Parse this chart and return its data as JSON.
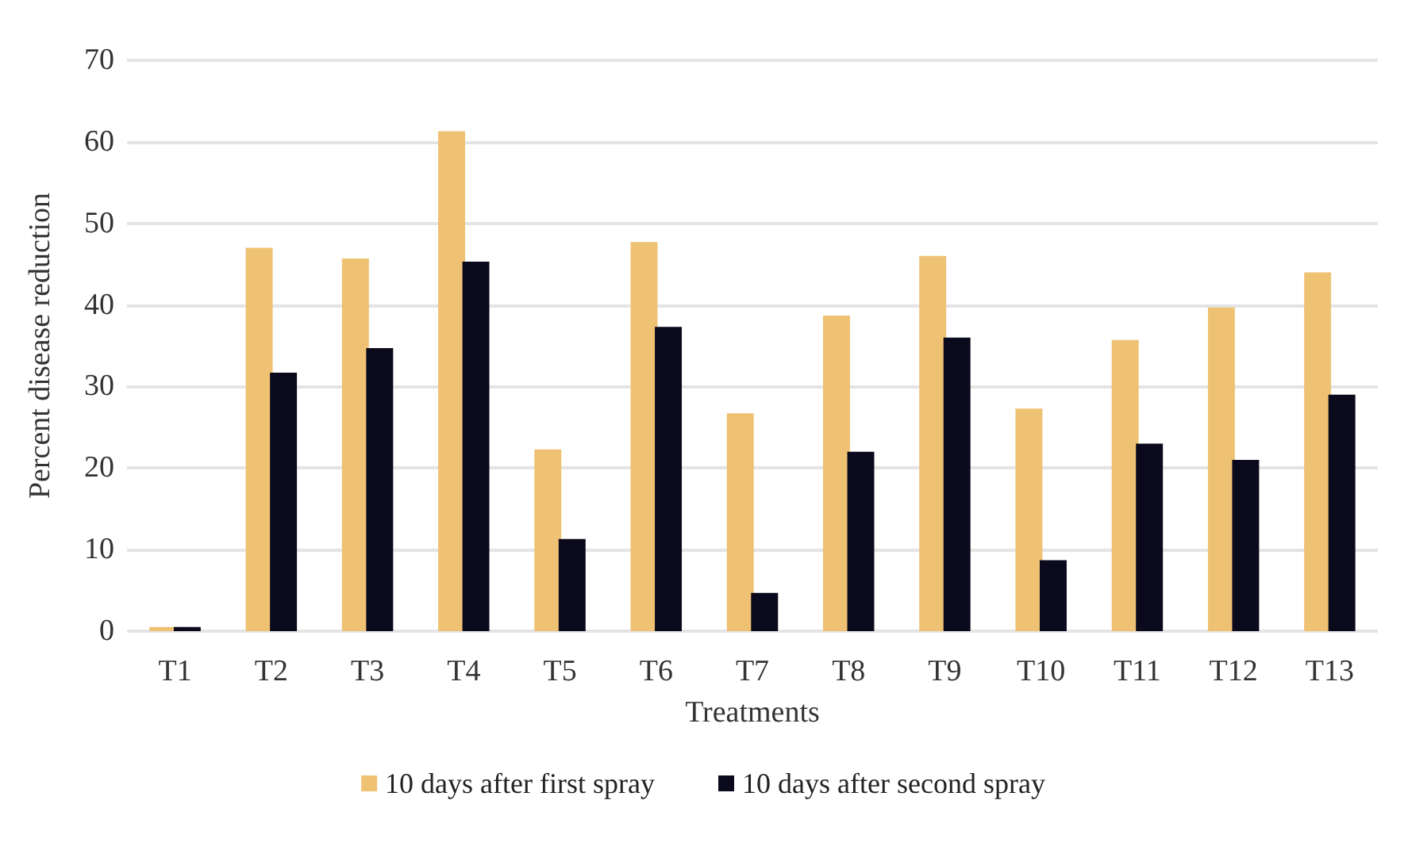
{
  "chart_data": {
    "type": "bar",
    "xlabel": "Treatments",
    "ylabel": "Percent disease reduction",
    "categories": [
      "T1",
      "T2",
      "T3",
      "T4",
      "T5",
      "T6",
      "T7",
      "T8",
      "T9",
      "T10",
      "T11",
      "T12",
      "T13"
    ],
    "series": [
      {
        "name": "10 days after first spray",
        "color": "#efc173",
        "values": [
          0.5,
          47,
          45.7,
          61.3,
          22.3,
          47.7,
          26.7,
          38.7,
          46,
          27.3,
          35.7,
          39.7,
          44
        ]
      },
      {
        "name": "10 days after second spray",
        "color": "#0b0a1c",
        "values": [
          0.5,
          31.7,
          34.7,
          45.3,
          11.3,
          37.3,
          4.7,
          22,
          36,
          8.7,
          23,
          21,
          29
        ]
      }
    ],
    "ylim": [
      0,
      70
    ],
    "yticks": [
      0,
      10,
      20,
      30,
      40,
      50,
      60,
      70
    ],
    "grid": "y",
    "legend": "bottom"
  }
}
